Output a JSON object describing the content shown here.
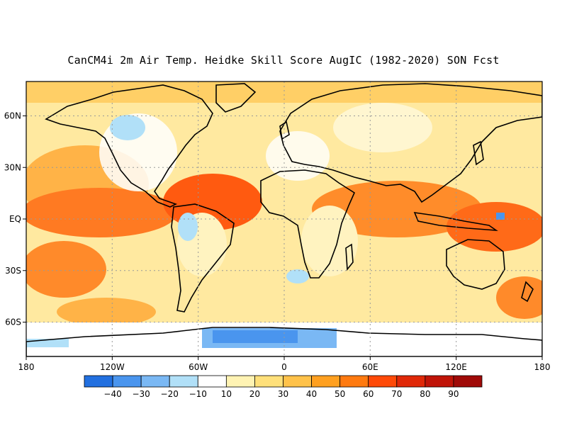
{
  "title": "CanCM4i 2m Air Temp. Heidke Skill Score AugIC (1982-2020) SON Fcst",
  "axes": {
    "lat_labels": [
      "60N",
      "30N",
      "EQ",
      "30S",
      "60S"
    ],
    "lat_values": [
      60,
      30,
      0,
      -30,
      -60
    ],
    "lon_labels": [
      "180",
      "120W",
      "60W",
      "0",
      "60E",
      "120E",
      "180"
    ],
    "lon_values": [
      -180,
      -120,
      -60,
      0,
      60,
      120,
      180
    ],
    "lon_range": [
      -180,
      180
    ],
    "lat_range": [
      -80,
      80
    ]
  },
  "colorbar": {
    "labels": [
      "-40",
      "-30",
      "-20",
      "-10",
      "10",
      "20",
      "30",
      "40",
      "50",
      "60",
      "70",
      "80",
      "90"
    ],
    "colors": [
      "#2270e0",
      "#4a95ee",
      "#7ab8f4",
      "#b1e0f8",
      "#ffffff",
      "#fff3b3",
      "#ffe07a",
      "#ffc24a",
      "#ffa020",
      "#ff7a10",
      "#ff4a08",
      "#e02808",
      "#c01408",
      "#a00a08"
    ]
  },
  "colors": {
    "coast": "#000000",
    "grid": "#999999",
    "frame": "#000000"
  }
}
